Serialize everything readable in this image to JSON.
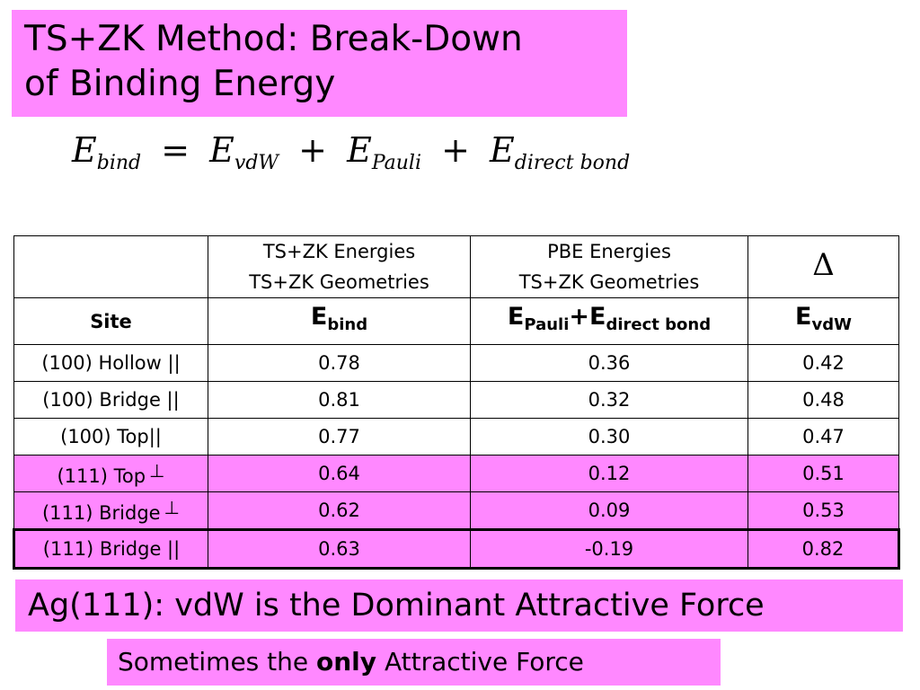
{
  "title": {
    "line1": "TS+ZK Method: Break-Down",
    "line2": "of Binding Energy"
  },
  "formula": {
    "e": "E",
    "bind": "bind",
    "equals": "=",
    "vdw": "vdW",
    "plus": "+",
    "pauli": "Pauli",
    "direct_bond": "direct bond"
  },
  "table": {
    "header": {
      "col2_line1": "TS+ZK Energies",
      "col2_line2": "TS+ZK Geometries",
      "col3_line1": "PBE Energies",
      "col3_line2": "TS+ZK Geometries",
      "col4": "Δ"
    },
    "subheader": {
      "site": "Site",
      "e": "E",
      "bind": "bind",
      "pauli": "Pauli",
      "plus": "+",
      "direct_bond": "direct bond",
      "vdw": "vdW"
    },
    "rows": [
      {
        "site": "(100) Hollow ||",
        "perp": "",
        "ebind": "0.78",
        "pauli_direct": "0.36",
        "evdw": "0.42"
      },
      {
        "site": "(100) Bridge ||",
        "perp": "",
        "ebind": "0.81",
        "pauli_direct": "0.32",
        "evdw": "0.48"
      },
      {
        "site": "(100) Top||",
        "perp": "",
        "ebind": "0.77",
        "pauli_direct": "0.30",
        "evdw": "0.47"
      },
      {
        "site": "(111) Top",
        "perp": "⊥",
        "ebind": "0.64",
        "pauli_direct": "0.12",
        "evdw": "0.51"
      },
      {
        "site": "(111) Bridge",
        "perp": "⊥",
        "ebind": "0.62",
        "pauli_direct": "0.09",
        "evdw": "0.53"
      },
      {
        "site": "(111) Bridge ||",
        "perp": "",
        "ebind": "0.63",
        "pauli_direct": "-0.19",
        "evdw": "0.82"
      }
    ]
  },
  "banner_main": "Ag(111):  vdW is the Dominant Attractive Force",
  "banner_sub": {
    "before": "Sometimes the ",
    "emphasis": "only",
    "after": " Attractive Force"
  },
  "colors": {
    "highlight": "#ff88ff",
    "text": "#000000",
    "background": "#ffffff"
  }
}
